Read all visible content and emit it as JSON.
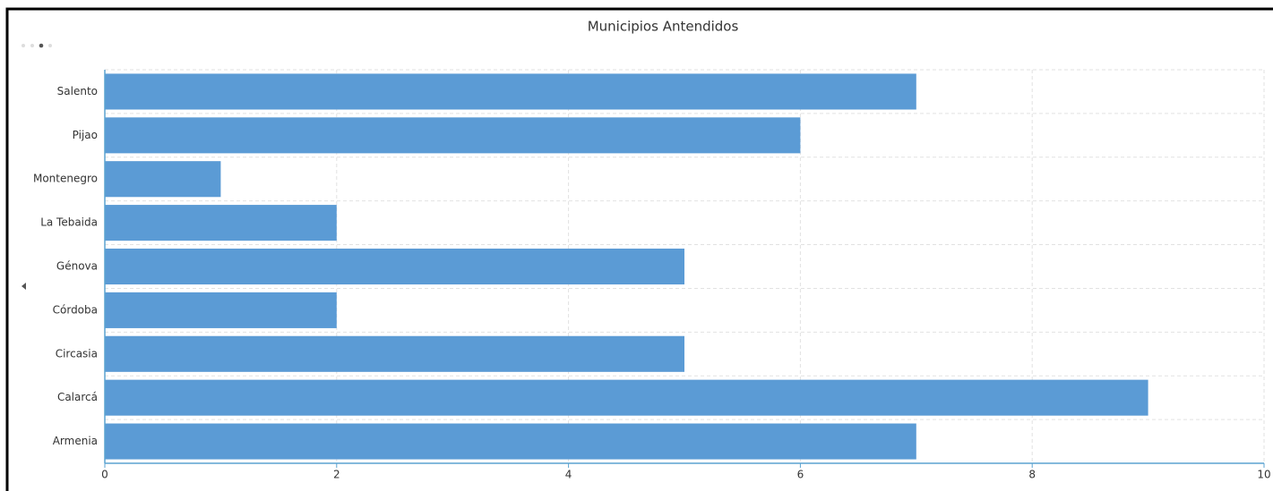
{
  "chart_data": {
    "type": "bar",
    "orientation": "horizontal",
    "title": "Municipios Antendidos",
    "categories": [
      "Salento",
      "Pijao",
      "Montenegro",
      "La Tebaida",
      "Génova",
      "Córdoba",
      "Circasia",
      "Calarcá",
      "Armenia"
    ],
    "values": [
      7,
      6,
      1,
      2,
      5,
      2,
      5,
      9,
      7
    ],
    "color": "#5b9bd5",
    "xlim": [
      0,
      10
    ],
    "xticks": [
      0,
      2,
      4,
      6,
      8,
      10
    ],
    "grid": true
  }
}
